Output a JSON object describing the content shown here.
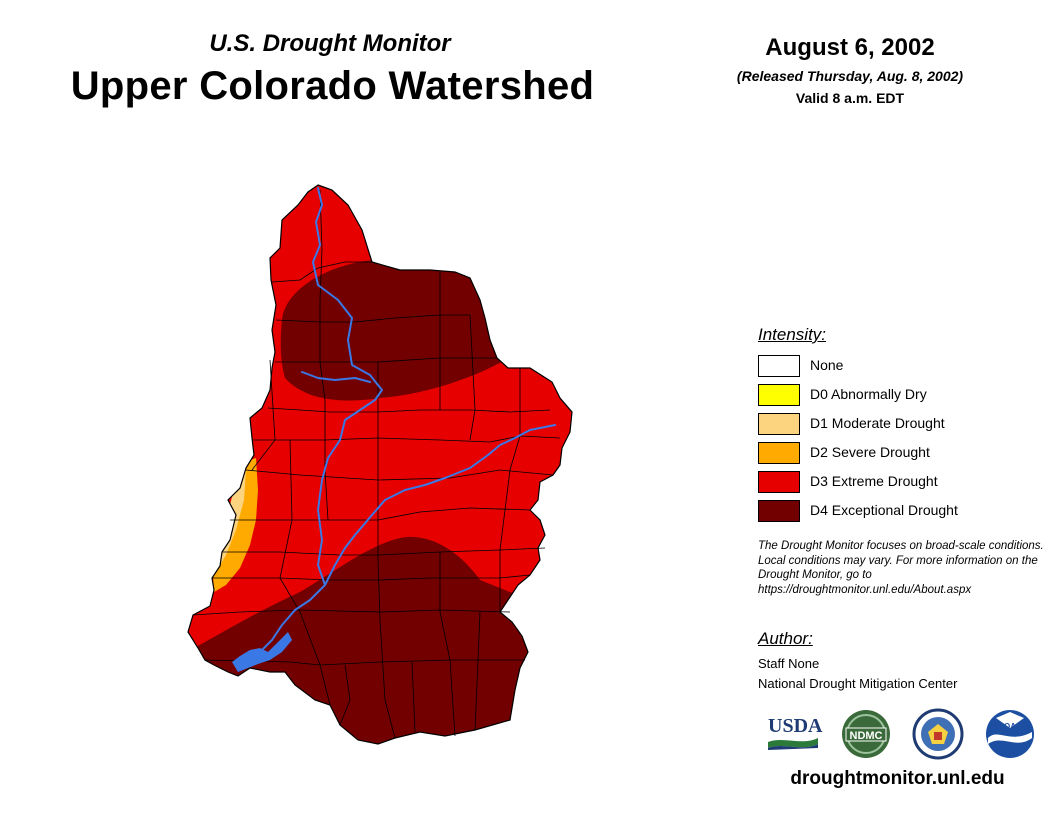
{
  "header": {
    "subtitle": "U.S. Drought Monitor",
    "title": "Upper Colorado Watershed",
    "date": "August 6, 2002",
    "released": "(Released Thursday, Aug. 8, 2002)",
    "valid": "Valid 8 a.m. EDT"
  },
  "legend": {
    "title": "Intensity:",
    "items": [
      {
        "label": "None",
        "color": "#ffffff"
      },
      {
        "label": "D0 Abnormally Dry",
        "color": "#ffff00"
      },
      {
        "label": "D1 Moderate Drought",
        "color": "#fcd37f"
      },
      {
        "label": "D2 Severe Drought",
        "color": "#ffaa00"
      },
      {
        "label": "D3 Extreme Drought",
        "color": "#e60000"
      },
      {
        "label": "D4 Exceptional Drought",
        "color": "#730000"
      }
    ]
  },
  "disclaimer": "The Drought Monitor focuses on broad-scale conditions. Local conditions may vary. For more information on the Drought Monitor, go to https://droughtmonitor.unl.edu/About.aspx",
  "author": {
    "title": "Author:",
    "name": "Staff None",
    "org": "National Drought Mitigation Center"
  },
  "logos": {
    "usda": "USDA",
    "ndmc": "NDMC",
    "doc": "commerce-seal",
    "noaa": "NOAA"
  },
  "website": "droughtmonitor.unl.edu",
  "colors": {
    "river": "#3a78e6",
    "boundary": "#000000"
  }
}
